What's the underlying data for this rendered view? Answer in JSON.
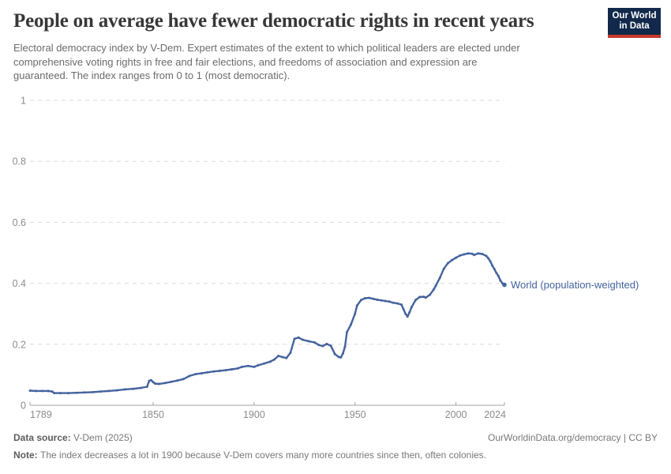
{
  "header": {
    "title": "People on average have fewer democratic rights in recent years",
    "subtitle_lines": [
      "Electoral democracy index by V-Dem. Expert estimates of the extent to which political leaders are elected under",
      "comprehensive voting rights in free and fair elections, and freedoms of association and expression are",
      "guaranteed. The index ranges from 0 to 1 (most democratic)."
    ]
  },
  "logo": {
    "line1": "Our World",
    "line2": "in Data",
    "bg_color": "#12294b",
    "stripe_color": "#c8372d"
  },
  "chart_data": {
    "type": "line",
    "title": "People on average have fewer democratic rights in recent years",
    "xlabel": "",
    "ylabel": "",
    "ylim": [
      0,
      1
    ],
    "xlim": [
      1789,
      2024
    ],
    "yticks": [
      0,
      0.2,
      0.4,
      0.6,
      0.8,
      1
    ],
    "ytick_labels": [
      "0",
      "0.2",
      "0.4",
      "0.6",
      "0.8",
      "1"
    ],
    "xticks": [
      1789,
      1850,
      1900,
      1950,
      2000,
      2024
    ],
    "xtick_labels": [
      "1789",
      "1850",
      "1900",
      "1950",
      "2000",
      "2024"
    ],
    "grid": "horizontal-dashed",
    "grid_color": "#dcdcdc",
    "axis_color": "#a3a3a3",
    "tick_label_color": "#8c8c8c",
    "legend_position": "end-of-line",
    "series": [
      {
        "name": "World (population-weighted)",
        "color": "#44639e",
        "x": [
          1789,
          1792,
          1795,
          1798,
          1800,
          1801,
          1804,
          1808,
          1812,
          1816,
          1820,
          1824,
          1828,
          1832,
          1836,
          1840,
          1844,
          1847,
          1848,
          1849,
          1850,
          1851,
          1853,
          1856,
          1859,
          1862,
          1865,
          1868,
          1871,
          1874,
          1877,
          1880,
          1883,
          1886,
          1889,
          1892,
          1894,
          1897,
          1900,
          1902,
          1905,
          1908,
          1910,
          1912,
          1914,
          1916,
          1918,
          1920,
          1922,
          1924,
          1927,
          1930,
          1932,
          1934,
          1936,
          1938,
          1940,
          1942,
          1943,
          1944,
          1945,
          1946,
          1948,
          1950,
          1951,
          1953,
          1955,
          1957,
          1959,
          1961,
          1963,
          1965,
          1967,
          1969,
          1971,
          1973,
          1974,
          1975,
          1976,
          1977,
          1978,
          1980,
          1982,
          1984,
          1985,
          1987,
          1989,
          1990,
          1992,
          1994,
          1996,
          1998,
          2000,
          2002,
          2004,
          2006,
          2008,
          2009,
          2011,
          2013,
          2015,
          2016,
          2017,
          2018,
          2019,
          2020,
          2021,
          2022,
          2023,
          2024
        ],
        "values": [
          0.048,
          0.047,
          0.047,
          0.047,
          0.045,
          0.04,
          0.04,
          0.04,
          0.041,
          0.042,
          0.043,
          0.045,
          0.047,
          0.049,
          0.052,
          0.054,
          0.057,
          0.061,
          0.08,
          0.082,
          0.076,
          0.071,
          0.07,
          0.073,
          0.077,
          0.081,
          0.086,
          0.096,
          0.102,
          0.105,
          0.108,
          0.111,
          0.113,
          0.115,
          0.118,
          0.121,
          0.126,
          0.129,
          0.126,
          0.131,
          0.137,
          0.143,
          0.15,
          0.162,
          0.158,
          0.155,
          0.172,
          0.218,
          0.222,
          0.215,
          0.21,
          0.206,
          0.198,
          0.194,
          0.201,
          0.195,
          0.168,
          0.158,
          0.157,
          0.17,
          0.192,
          0.24,
          0.265,
          0.3,
          0.327,
          0.345,
          0.351,
          0.352,
          0.349,
          0.346,
          0.344,
          0.342,
          0.34,
          0.336,
          0.334,
          0.33,
          0.315,
          0.3,
          0.291,
          0.305,
          0.322,
          0.345,
          0.355,
          0.356,
          0.353,
          0.362,
          0.38,
          0.392,
          0.418,
          0.448,
          0.466,
          0.476,
          0.484,
          0.491,
          0.495,
          0.498,
          0.497,
          0.493,
          0.498,
          0.496,
          0.49,
          0.482,
          0.472,
          0.458,
          0.447,
          0.434,
          0.424,
          0.409,
          0.4,
          0.395
        ]
      }
    ]
  },
  "footer": {
    "source_label": "Data source:",
    "source_value": "V-Dem (2025)",
    "rights": "OurWorldinData.org/democracy | CC BY",
    "note_label": "Note:",
    "note_value": "The index decreases a lot in 1900 because V-Dem covers many more countries since then, often colonies."
  }
}
